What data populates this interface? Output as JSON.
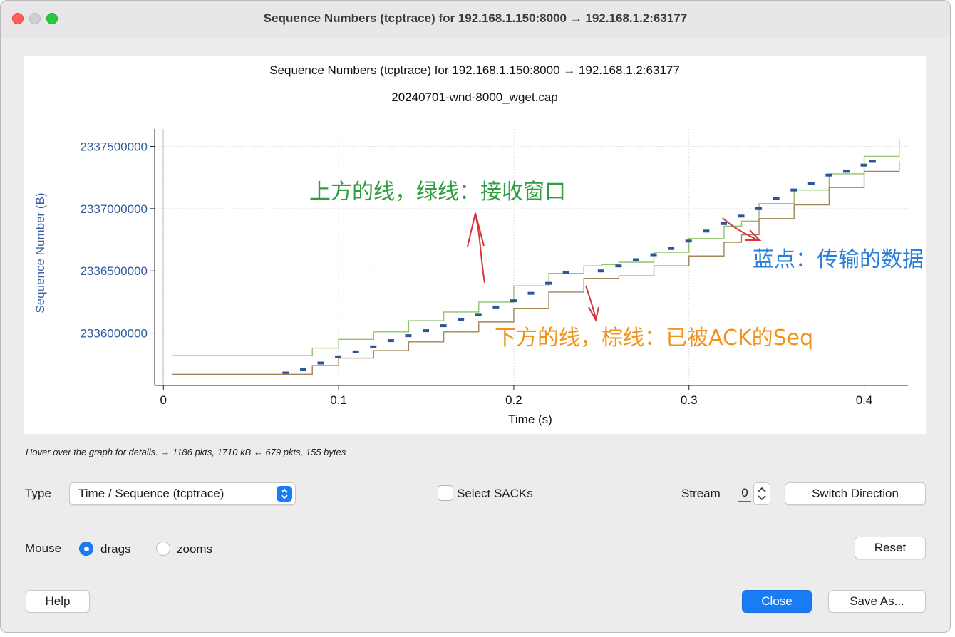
{
  "window": {
    "title": "Sequence Numbers (tcptrace) for 192.168.1.150:8000 → 192.168.1.2:63177"
  },
  "chart": {
    "title": "Sequence Numbers (tcptrace) for 192.168.1.150:8000 → 192.168.1.2:63177",
    "subtitle": "20240701-wnd-8000_wget.cap",
    "xlabel": "Time (s)",
    "ylabel": "Sequence Number (B)",
    "x_ticks": [
      "0",
      "0.1",
      "0.2",
      "0.3",
      "0.4"
    ],
    "y_ticks": [
      "2337500000",
      "2337000000",
      "2336500000",
      "2336000000"
    ]
  },
  "chart_data": {
    "type": "line",
    "title": "Sequence Numbers (tcptrace) for 192.168.1.150:8000 → 192.168.1.2:63177",
    "subtitle": "20240701-wnd-8000_wget.cap",
    "xlabel": "Time (s)",
    "ylabel": "Sequence Number (B)",
    "xlim": [
      -0.005,
      0.425
    ],
    "ylim": [
      2335580000,
      2337640000
    ],
    "x_ticks": [
      0,
      0.1,
      0.2,
      0.3,
      0.4
    ],
    "y_ticks": [
      2336000000,
      2336500000,
      2337000000,
      2337500000
    ],
    "grid": true,
    "series": [
      {
        "color": "#8fc46a",
        "x": [
          0.005,
          0.07,
          0.085,
          0.1,
          0.12,
          0.14,
          0.16,
          0.18,
          0.2,
          0.22,
          0.24,
          0.25,
          0.26,
          0.28,
          0.3,
          0.32,
          0.33,
          0.34,
          0.36,
          0.38,
          0.4,
          0.42
        ],
        "y": [
          2335820000,
          2335820000,
          2335880000,
          2335950000,
          2336010000,
          2336100000,
          2336170000,
          2336250000,
          2336380000,
          2336480000,
          2336540000,
          2336550000,
          2336570000,
          2336650000,
          2336760000,
          2336860000,
          2336900000,
          2337040000,
          2337150000,
          2337280000,
          2337420000,
          2337560000
        ]
      },
      {
        "color": "#2e5496",
        "x": [
          0.07,
          0.08,
          0.09,
          0.1,
          0.11,
          0.12,
          0.13,
          0.14,
          0.15,
          0.16,
          0.17,
          0.18,
          0.19,
          0.2,
          0.21,
          0.22,
          0.23,
          0.25,
          0.26,
          0.27,
          0.28,
          0.29,
          0.3,
          0.31,
          0.32,
          0.33,
          0.34,
          0.35,
          0.36,
          0.37,
          0.38,
          0.39,
          0.4,
          0.405
        ],
        "y": [
          2335680000,
          2335710000,
          2335760000,
          2335810000,
          2335850000,
          2335890000,
          2335940000,
          2335980000,
          2336020000,
          2336060000,
          2336110000,
          2336150000,
          2336210000,
          2336260000,
          2336320000,
          2336400000,
          2336490000,
          2336500000,
          2336540000,
          2336590000,
          2336630000,
          2336680000,
          2336740000,
          2336820000,
          2336880000,
          2336940000,
          2337000000,
          2337080000,
          2337150000,
          2337200000,
          2337270000,
          2337300000,
          2337350000,
          2337380000
        ]
      },
      {
        "color": "#a28559",
        "x": [
          0.005,
          0.07,
          0.085,
          0.1,
          0.12,
          0.14,
          0.16,
          0.18,
          0.2,
          0.22,
          0.24,
          0.25,
          0.26,
          0.28,
          0.3,
          0.32,
          0.33,
          0.34,
          0.36,
          0.38,
          0.4,
          0.42
        ],
        "y": [
          2335670000,
          2335670000,
          2335740000,
          2335800000,
          2335860000,
          2335930000,
          2336010000,
          2336090000,
          2336200000,
          2336330000,
          2336440000,
          2336440000,
          2336460000,
          2336540000,
          2336620000,
          2336730000,
          2336790000,
          2336920000,
          2337030000,
          2337170000,
          2337300000,
          2337380000
        ]
      }
    ]
  },
  "annotations": {
    "green": "上方的线，绿线：接收窗口",
    "blue": "蓝点：传输的数据",
    "orange": "下方的线，棕线：已被ACK的Seq"
  },
  "status": {
    "hover_text": "Hover over the graph for details. → 1186 pkts, 1710 kB ← 679 pkts, 155 bytes"
  },
  "controls": {
    "type_label": "Type",
    "type_value": "Time / Sequence (tcptrace)",
    "select_sacks_label": "Select SACKs",
    "stream_label": "Stream",
    "stream_value": "0",
    "switch_direction_label": "Switch Direction",
    "mouse_label": "Mouse",
    "drags_label": "drags",
    "zooms_label": "zooms",
    "reset_label": "Reset",
    "help_label": "Help",
    "close_label": "Close",
    "save_as_label": "Save As..."
  },
  "colors": {
    "accent": "#1a7cf4",
    "green_line": "#8fc46a",
    "blue_dots": "#2e5496",
    "brown_line": "#a28559",
    "annotation_green": "#2f9e3f",
    "annotation_blue": "#2b7fd6",
    "annotation_orange": "#f2921a",
    "arrow_red": "#d8343a"
  }
}
